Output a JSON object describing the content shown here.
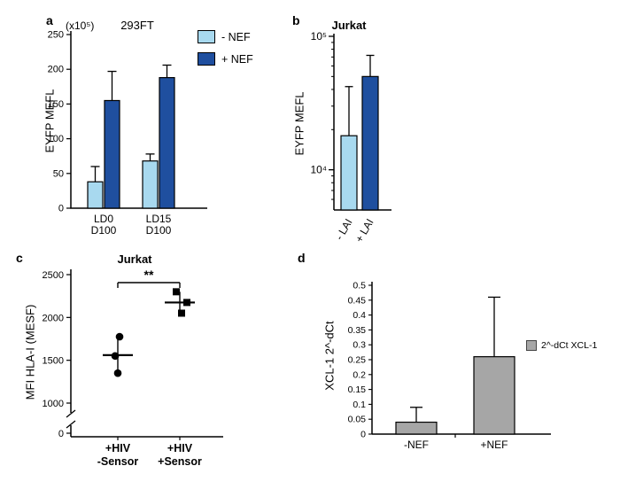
{
  "colors": {
    "light_blue": "#a8d9ef",
    "dark_blue": "#1f4f9f",
    "bar_gray": "#a6a6a6",
    "axis_black": "#000000",
    "background": "#ffffff"
  },
  "chart_data": [
    {
      "id": "a",
      "type": "bar",
      "panel_label": "a",
      "title": "293FT",
      "scale_note": "(x10⁵)",
      "ylabel": "EYFP MEFL",
      "ylim": [
        0,
        250
      ],
      "yticks": [
        0,
        50,
        100,
        150,
        200,
        250
      ],
      "categories": [
        [
          "LD0",
          "D100"
        ],
        [
          "LD15",
          "D100"
        ]
      ],
      "series": [
        {
          "name": "- NEF",
          "color_key": "light_blue",
          "values": [
            38,
            68
          ],
          "errors_up": [
            22,
            10
          ]
        },
        {
          "name": "+ NEF",
          "color_key": "dark_blue",
          "values": [
            155,
            188
          ],
          "errors_up": [
            42,
            18
          ]
        }
      ],
      "legend": [
        {
          "label": "- NEF",
          "color_key": "light_blue"
        },
        {
          "label": "+ NEF",
          "color_key": "dark_blue"
        }
      ],
      "legend_position": "top-right"
    },
    {
      "id": "b",
      "type": "bar",
      "panel_label": "b",
      "title": "Jurkat",
      "ylabel": "EYFP MEFL",
      "yscale": "log",
      "ylim": [
        5000,
        100000
      ],
      "yticks_log": [
        {
          "value": 10000,
          "label": "10⁴"
        },
        {
          "value": 100000,
          "label": "10⁵"
        }
      ],
      "bars": [
        {
          "label": "- LAI",
          "color_key": "light_blue",
          "value": 18000,
          "error_top": 42000
        },
        {
          "label": "+ LAI",
          "color_key": "dark_blue",
          "value": 50000,
          "error_top": 72000
        }
      ]
    },
    {
      "id": "c",
      "type": "scatter",
      "panel_label": "c",
      "title": "Jurkat",
      "ylabel": "MFI HLA-I (MESF)",
      "ylim": [
        1000,
        2500
      ],
      "yticks": [
        1000,
        1500,
        2000,
        2500
      ],
      "zero_label": "0",
      "axis_break": true,
      "significance": "**",
      "groups": [
        {
          "label_lines": [
            "+HIV",
            "-Sensor"
          ],
          "marker": "circle",
          "points": [
            1350,
            1550,
            1775
          ],
          "mean": 1560
        },
        {
          "label_lines": [
            "+HIV",
            "+Sensor"
          ],
          "marker": "square",
          "points": [
            2050,
            2175,
            2300
          ],
          "mean": 2175
        }
      ]
    },
    {
      "id": "d",
      "type": "bar",
      "panel_label": "d",
      "title": "",
      "ylabel": "XCL-1 2^-dCt",
      "ylim": [
        0,
        0.5
      ],
      "yticks": [
        0,
        0.05,
        0.1,
        0.15,
        0.2,
        0.25,
        0.3,
        0.35,
        0.4,
        0.45,
        0.5
      ],
      "bars": [
        {
          "label": "-NEF",
          "color_key": "bar_gray",
          "value": 0.04,
          "error_up": 0.05
        },
        {
          "label": "+NEF",
          "color_key": "bar_gray",
          "value": 0.26,
          "error_up": 0.2
        }
      ],
      "legend_label": "2^-dCt XCL-1",
      "legend_position": "right"
    }
  ]
}
